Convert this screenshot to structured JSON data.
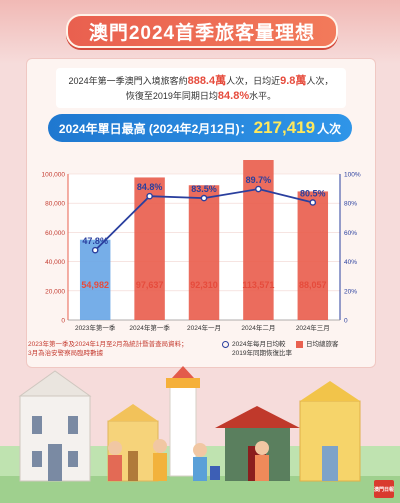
{
  "title": "澳門2024首季旅客量理想",
  "summary": {
    "line1_a": "2024年第一季澳門入境旅客約",
    "line1_v1": "888.4萬",
    "line1_b": "人次，日均近",
    "line1_v2": "9.8萬",
    "line1_c": "人次，",
    "line2_a": "恢復至2019年同期日均",
    "line2_v": "84.8%",
    "line2_b": "水平。"
  },
  "peak": {
    "label": "2024年單日最高 (2024年2月12日)：",
    "value": "217,419",
    "unit": "人次"
  },
  "chart_data": {
    "type": "bar",
    "categories": [
      "2023年第一季",
      "2024年第一季",
      "2024年一月",
      "2024年二月",
      "2024年三月"
    ],
    "series": [
      {
        "name": "日均總旅客",
        "type": "bar",
        "values": [
          54982,
          97637,
          92310,
          113571,
          88057
        ],
        "value_labels": [
          "54,982",
          "97,637",
          "92,310",
          "113,571",
          "88,057"
        ]
      },
      {
        "name": "2024年每月日均較2019年同期恢復比率",
        "type": "line",
        "axis": "right",
        "values": [
          47.8,
          84.8,
          83.5,
          89.7,
          80.5
        ],
        "value_labels": [
          "47.8%",
          "84.8%",
          "83.5%",
          "89.7%",
          "80.5%"
        ]
      }
    ],
    "y_left": {
      "range": [
        0,
        100000
      ],
      "ticks": [
        "0",
        "20,000",
        "40,000",
        "60,000",
        "80,000",
        "100,000"
      ]
    },
    "y_right": {
      "range": [
        0,
        100
      ],
      "ticks": [
        "0",
        "20%",
        "40%",
        "60%",
        "80%",
        "100%"
      ]
    },
    "colors": {
      "bar": "#e9604f",
      "bar_first": "#6aa7e6",
      "line": "#2a3f9e",
      "bar_label": "#e64b3c"
    }
  },
  "note": {
    "line1": "2023年第一季及2024年1月至2月為統計暨普查局資料；",
    "line2": "3月為治安警察局臨時數據"
  },
  "legend": {
    "line_label": "2024年每月日均較",
    "line_label2": "2019年同期恢復比率",
    "bar_label": "日均總旅客"
  },
  "badge": "澳門日報"
}
